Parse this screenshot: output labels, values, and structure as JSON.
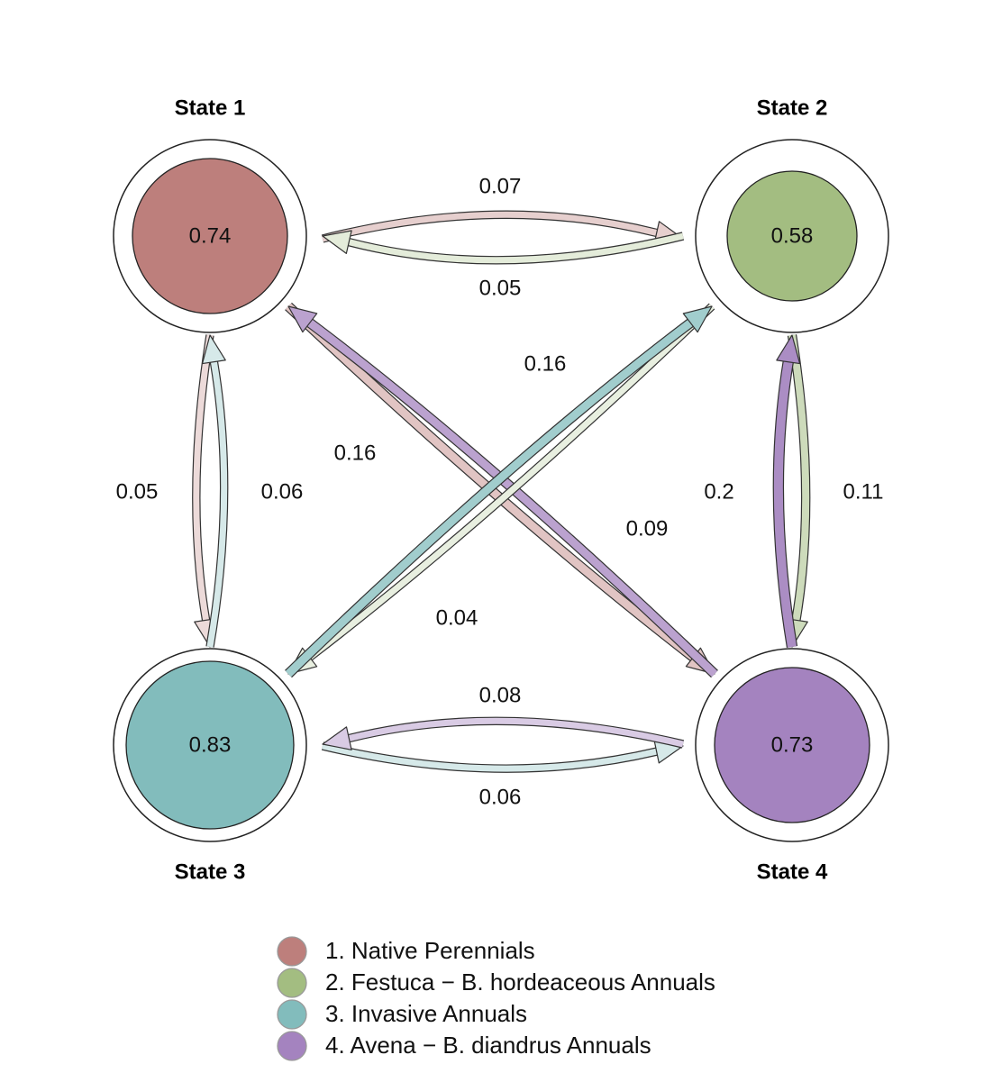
{
  "colors": {
    "state1": "#bd7f7c",
    "state2": "#a3bd81",
    "state3": "#82bcbc",
    "state4": "#a483bf",
    "outline": "#222222"
  },
  "states": [
    {
      "id": 1,
      "title": "State 1",
      "value": "0.74",
      "color": "#bd7f7c"
    },
    {
      "id": 2,
      "title": "State 2",
      "value": "0.58",
      "color": "#a3bd81"
    },
    {
      "id": 3,
      "title": "State 3",
      "value": "0.83",
      "color": "#82bcbc"
    },
    {
      "id": 4,
      "title": "State 4",
      "value": "0.73",
      "color": "#a483bf"
    }
  ],
  "transitions": [
    {
      "from": 1,
      "to": 2,
      "value": "0.07"
    },
    {
      "from": 2,
      "to": 1,
      "value": "0.05"
    },
    {
      "from": 1,
      "to": 3,
      "value": "0.05"
    },
    {
      "from": 3,
      "to": 1,
      "value": "0.06"
    },
    {
      "from": 3,
      "to": 4,
      "value": "0.06"
    },
    {
      "from": 4,
      "to": 3,
      "value": "0.08"
    },
    {
      "from": 2,
      "to": 4,
      "value": "0.11"
    },
    {
      "from": 4,
      "to": 2,
      "value": "0.2"
    },
    {
      "from": 1,
      "to": 4,
      "value": "0.09"
    },
    {
      "from": 4,
      "to": 1,
      "value": "0.16"
    },
    {
      "from": 2,
      "to": 3,
      "value": "0.04"
    },
    {
      "from": 3,
      "to": 2,
      "value": "0.16"
    }
  ],
  "legend": [
    {
      "label": "1. Native Perennials",
      "color": "#bd7f7c"
    },
    {
      "label": "2. Festuca − B. hordeaceous Annuals",
      "color": "#a3bd81"
    },
    {
      "label": "3. Invasive Annuals",
      "color": "#82bcbc"
    },
    {
      "label": "4. Avena − B. diandrus Annuals",
      "color": "#a483bf"
    }
  ]
}
